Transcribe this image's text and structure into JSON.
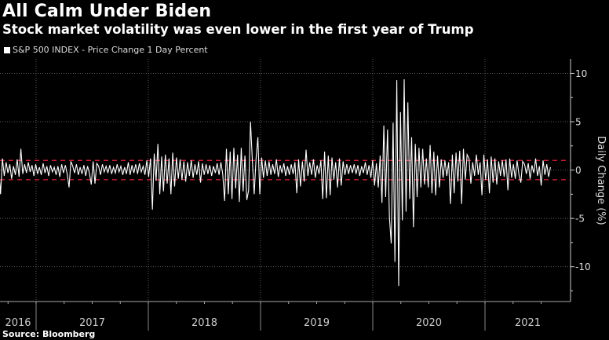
{
  "title": "All Calm Under Biden",
  "subtitle": "Stock market volatility was even lower in the first year of Trump",
  "source": "Source: Bloomberg",
  "colors": {
    "background": "#000000",
    "series": "#ffffff",
    "reference": "#e0203a",
    "grid": "#555555"
  },
  "chart_data": {
    "type": "line",
    "legend": {
      "entries": [
        "S&P 500 INDEX - Price Change 1 Day Percent"
      ],
      "placement": "top-left"
    },
    "ylabel": "Daily Change (%)",
    "xlabel": "",
    "ylim": [
      -13.6,
      11.5
    ],
    "yticks": [
      10,
      5,
      0,
      -5,
      -10
    ],
    "y_axis_side": "right",
    "x_range": [
      "2016-09",
      "2021-08"
    ],
    "xtick_labels": [
      "2016",
      "2017",
      "2018",
      "2019",
      "2020",
      "2021"
    ],
    "grid": true,
    "reference_lines": [
      1,
      -1
    ],
    "series": [
      {
        "name": "S&P 500 INDEX - Price Change 1 Day Percent",
        "values": [
          0.5,
          -2.5,
          1.2,
          -0.6,
          0.8,
          -0.3,
          0.6,
          -0.9,
          0.4,
          -0.5,
          1.1,
          -0.7,
          2.2,
          -0.4,
          0.6,
          -0.3,
          0.8,
          -0.2,
          0.5,
          -0.6,
          0.6,
          -0.4,
          0.3,
          -0.5,
          0.7,
          -0.3,
          0.4,
          -0.6,
          0.5,
          -0.2,
          0.3,
          -0.5,
          0.4,
          -0.7,
          0.6,
          -0.3,
          0.5,
          -0.4,
          -1.8,
          0.9,
          0.4,
          -0.3,
          0.6,
          -0.5,
          0.3,
          -0.4,
          0.5,
          -0.6,
          0.4,
          -0.3,
          -1.5,
          0.9,
          -1.4,
          0.7,
          0.4,
          -0.5,
          0.6,
          -0.2,
          0.4,
          -0.3,
          0.5,
          -0.4,
          0.3,
          -0.3,
          0.6,
          -0.2,
          0.4,
          -0.5,
          0.3,
          -0.4,
          0.8,
          -0.5,
          0.5,
          -0.3,
          0.6,
          -0.4,
          0.7,
          -0.2,
          0.4,
          -0.5,
          1.0,
          -0.7,
          1.2,
          -4.1,
          1.7,
          -1.1,
          2.7,
          -2.5,
          1.4,
          -2.2,
          1.6,
          -1.4,
          1.2,
          -2.5,
          1.8,
          -1.7,
          1.3,
          -0.9,
          1.1,
          -1.0,
          0.9,
          -1.2,
          0.8,
          -0.6,
          1.0,
          -0.8,
          0.6,
          -0.5,
          0.9,
          -1.3,
          0.7,
          -0.5,
          0.6,
          -0.4,
          0.5,
          -0.6,
          0.4,
          -0.3,
          0.7,
          -0.5,
          0.8,
          -0.4,
          -3.2,
          2.2,
          -2.5,
          1.9,
          -3.0,
          2.3,
          -1.9,
          1.6,
          -3.3,
          2.3,
          -2.2,
          1.5,
          -3.1,
          -2.1,
          5.0,
          0.9,
          -2.5,
          1.2,
          3.4,
          -2.5,
          1.3,
          -0.8,
          1.0,
          -0.6,
          0.9,
          -0.5,
          0.6,
          -0.4,
          1.1,
          -0.7,
          0.5,
          -0.3,
          0.7,
          -0.6,
          0.4,
          -0.5,
          0.6,
          -0.4,
          0.8,
          -2.4,
          1.1,
          -1.7,
          0.9,
          -1.2,
          2.1,
          -0.6,
          0.8,
          -0.5,
          1.1,
          -0.8,
          0.5,
          -0.4,
          1.0,
          -3.0,
          1.9,
          -2.9,
          1.5,
          -2.6,
          1.3,
          -1.0,
          0.8,
          -1.8,
          1.2,
          -1.6,
          0.9,
          -0.5,
          0.6,
          -0.4,
          0.5,
          -0.3,
          0.6,
          -0.4,
          0.5,
          -0.6,
          0.4,
          -0.3,
          0.8,
          -0.5,
          0.5,
          -0.8,
          1.0,
          -1.6,
          0.7,
          -1.8,
          1.5,
          -3.4,
          4.6,
          -2.8,
          4.2,
          -4.9,
          -7.6,
          4.9,
          -9.5,
          9.3,
          -12.0,
          6.0,
          -5.2,
          9.4,
          -4.3,
          7.0,
          -3.0,
          3.4,
          -5.9,
          2.7,
          -2.8,
          2.3,
          -1.8,
          2.2,
          -1.5,
          1.2,
          -1.8,
          2.6,
          -2.4,
          1.9,
          -2.6,
          1.5,
          -1.8,
          1.1,
          -0.8,
          1.0,
          -0.6,
          0.8,
          -3.5,
          1.6,
          -2.4,
          1.8,
          -1.2,
          2.0,
          -3.5,
          2.2,
          -1.0,
          1.6,
          1.2,
          -1.4,
          0.8,
          -0.6,
          1.6,
          -0.5,
          0.8,
          -2.6,
          1.6,
          -1.0,
          1.1,
          -2.4,
          1.4,
          -1.3,
          1.2,
          -1.5,
          0.9,
          -0.6,
          1.0,
          -0.7,
          1.1,
          -2.1,
          1.2,
          -0.8,
          0.6,
          -0.9,
          1.0,
          -0.5,
          -1.3,
          0.9,
          0.6,
          -0.4,
          0.7,
          -0.9,
          0.5,
          -0.3,
          1.2,
          -0.6,
          0.4,
          -1.6,
          1.0,
          -0.5,
          0.6,
          -0.7,
          0.3
        ]
      }
    ]
  }
}
